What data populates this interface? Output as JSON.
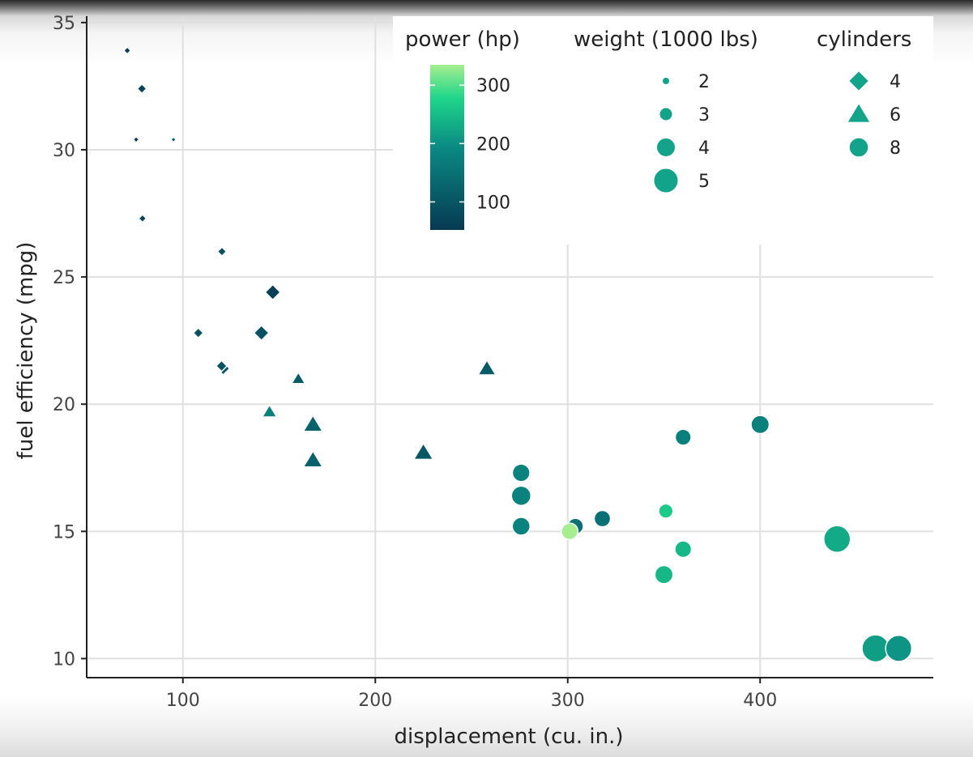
{
  "chart_data": {
    "type": "scatter",
    "title": "",
    "xlabel": "displacement (cu. in.)",
    "ylabel": "fuel efficiency (mpg)",
    "xlim": [
      50,
      490
    ],
    "ylim": [
      9.25,
      35.25
    ],
    "xticks": [
      100,
      200,
      300,
      400
    ],
    "yticks": [
      10,
      15,
      20,
      25,
      30,
      35
    ],
    "grid": true,
    "legend_placement": "top-right",
    "encodings": {
      "color": {
        "title": "power (hp)",
        "min": 52,
        "max": 335,
        "ticks": [
          100,
          200,
          300
        ],
        "low_color": "#053a53",
        "mid_color": "#0b8a83",
        "high_color": "#a6ee90"
      },
      "size": {
        "title": "weight (1000 lbs)",
        "levels": [
          2,
          3,
          4,
          5
        ]
      },
      "shape": {
        "title": "cylinders",
        "levels": [
          {
            "cyl": 4,
            "shape": "diamond"
          },
          {
            "cyl": 6,
            "shape": "triangle"
          },
          {
            "cyl": 8,
            "shape": "circle"
          }
        ]
      }
    },
    "points": [
      {
        "disp": 71.1,
        "mpg": 33.9,
        "hp": 65,
        "wt": 1.835,
        "cyl": 4
      },
      {
        "disp": 78.7,
        "mpg": 32.4,
        "hp": 66,
        "wt": 2.2,
        "cyl": 4
      },
      {
        "disp": 75.7,
        "mpg": 30.4,
        "hp": 52,
        "wt": 1.615,
        "cyl": 4
      },
      {
        "disp": 95.1,
        "mpg": 30.4,
        "hp": 113,
        "wt": 1.513,
        "cyl": 4
      },
      {
        "disp": 79.0,
        "mpg": 27.3,
        "hp": 66,
        "wt": 1.935,
        "cyl": 4
      },
      {
        "disp": 120.3,
        "mpg": 26.0,
        "hp": 91,
        "wt": 2.14,
        "cyl": 4
      },
      {
        "disp": 146.7,
        "mpg": 24.4,
        "hp": 62,
        "wt": 3.19,
        "cyl": 4
      },
      {
        "disp": 108.0,
        "mpg": 22.8,
        "hp": 93,
        "wt": 2.32,
        "cyl": 4
      },
      {
        "disp": 140.8,
        "mpg": 22.8,
        "hp": 95,
        "wt": 3.15,
        "cyl": 4
      },
      {
        "disp": 121.0,
        "mpg": 21.4,
        "hp": 109,
        "wt": 2.78,
        "cyl": 4
      },
      {
        "disp": 120.1,
        "mpg": 21.5,
        "hp": 97,
        "wt": 2.465,
        "cyl": 4
      },
      {
        "disp": 160.0,
        "mpg": 21.0,
        "hp": 110,
        "wt": 2.62,
        "cyl": 6
      },
      {
        "disp": 145.0,
        "mpg": 19.7,
        "hp": 175,
        "wt": 2.77,
        "cyl": 6
      },
      {
        "disp": 167.6,
        "mpg": 19.2,
        "hp": 123,
        "wt": 3.44,
        "cyl": 6
      },
      {
        "disp": 167.6,
        "mpg": 17.8,
        "hp": 123,
        "wt": 3.44,
        "cyl": 6
      },
      {
        "disp": 225.0,
        "mpg": 18.1,
        "hp": 105,
        "wt": 3.46,
        "cyl": 6
      },
      {
        "disp": 258.0,
        "mpg": 21.4,
        "hp": 110,
        "wt": 3.215,
        "cyl": 6
      },
      {
        "disp": 275.8,
        "mpg": 17.3,
        "hp": 180,
        "wt": 3.73,
        "cyl": 8
      },
      {
        "disp": 275.8,
        "mpg": 16.4,
        "hp": 180,
        "wt": 4.07,
        "cyl": 8
      },
      {
        "disp": 275.8,
        "mpg": 15.2,
        "hp": 180,
        "wt": 3.78,
        "cyl": 8
      },
      {
        "disp": 304.0,
        "mpg": 15.2,
        "hp": 150,
        "wt": 3.435,
        "cyl": 8
      },
      {
        "disp": 301.0,
        "mpg": 15.0,
        "hp": 335,
        "wt": 3.57,
        "cyl": 8
      },
      {
        "disp": 318.0,
        "mpg": 15.5,
        "hp": 150,
        "wt": 3.52,
        "cyl": 8
      },
      {
        "disp": 351.0,
        "mpg": 15.8,
        "hp": 264,
        "wt": 3.17,
        "cyl": 8
      },
      {
        "disp": 360.0,
        "mpg": 18.7,
        "hp": 175,
        "wt": 3.44,
        "cyl": 8
      },
      {
        "disp": 360.0,
        "mpg": 14.3,
        "hp": 245,
        "wt": 3.57,
        "cyl": 8
      },
      {
        "disp": 350.0,
        "mpg": 13.3,
        "hp": 245,
        "wt": 3.84,
        "cyl": 8
      },
      {
        "disp": 400.0,
        "mpg": 19.2,
        "hp": 175,
        "wt": 3.845,
        "cyl": 8
      },
      {
        "disp": 440.0,
        "mpg": 14.7,
        "hp": 230,
        "wt": 5.345,
        "cyl": 8
      },
      {
        "disp": 460.0,
        "mpg": 10.4,
        "hp": 215,
        "wt": 5.424,
        "cyl": 8
      },
      {
        "disp": 472.0,
        "mpg": 10.4,
        "hp": 205,
        "wt": 5.25,
        "cyl": 8
      }
    ]
  }
}
